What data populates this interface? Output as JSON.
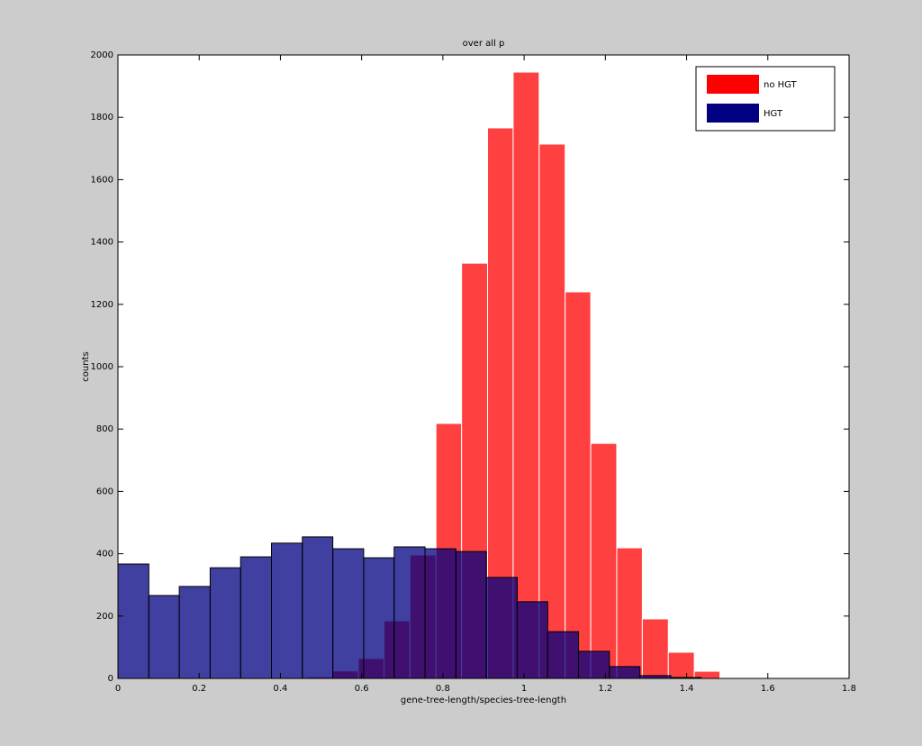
{
  "chart_data": {
    "type": "histogram",
    "title": "over all p",
    "xlabel": "gene-tree-length/species-tree-length",
    "ylabel": "counts",
    "xlim": [
      0,
      1.8
    ],
    "xticks": [
      0,
      0.2,
      0.4,
      0.6,
      0.8,
      1,
      1.2,
      1.4,
      1.6,
      1.8
    ],
    "ylim": [
      0,
      2000
    ],
    "yticks": [
      0,
      200,
      400,
      600,
      800,
      1000,
      1200,
      1400,
      1600,
      1800,
      2000
    ],
    "legend": "northeast",
    "series": [
      {
        "name": "no HGT",
        "color": "#ff0000",
        "bins": [
          0.401,
          0.465,
          0.528,
          0.592,
          0.655,
          0.719,
          0.783,
          0.846,
          0.91,
          0.973,
          1.037,
          1.101,
          1.164,
          1.228,
          1.291,
          1.355,
          1.419,
          1.482,
          1.546,
          1.609,
          1.673,
          1.737,
          1.8
        ],
        "values": [
          2,
          5,
          24,
          64,
          185,
          396,
          818,
          1332,
          1766,
          1945,
          1714,
          1240,
          754,
          419,
          191,
          84,
          23,
          2,
          1,
          0,
          0,
          1
        ]
      },
      {
        "name": "HGT",
        "color": "#000080",
        "bins": [
          0,
          0.076,
          0.151,
          0.227,
          0.302,
          0.378,
          0.454,
          0.529,
          0.605,
          0.68,
          0.756,
          0.832,
          0.907,
          0.983,
          1.058,
          1.134,
          1.21,
          1.285,
          1.361,
          1.436
        ],
        "values": [
          367,
          266,
          295,
          355,
          390,
          434,
          454,
          416,
          387,
          422,
          416,
          407,
          324,
          246,
          150,
          87,
          38,
          9,
          3
        ]
      }
    ]
  }
}
